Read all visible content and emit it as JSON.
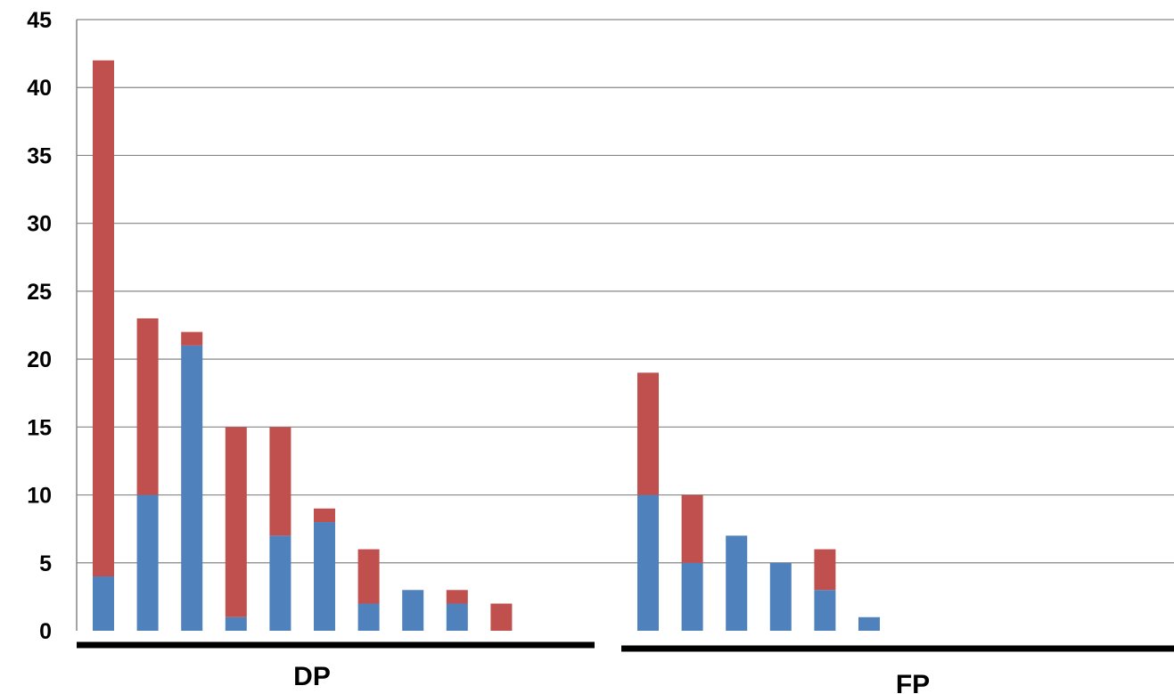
{
  "chart_data": {
    "type": "bar",
    "stacked": true,
    "title": "",
    "xlabel": "",
    "ylabel": "",
    "ylim": [
      0,
      45
    ],
    "yticks": [
      "0",
      "5",
      "10",
      "15",
      "20",
      "25",
      "30",
      "35",
      "40",
      "45"
    ],
    "grid": true,
    "legend": "none",
    "groups": [
      {
        "label": "DP",
        "bars": [
          {
            "blue": 4,
            "red": 38
          },
          {
            "blue": 10,
            "red": 13
          },
          {
            "blue": 21,
            "red": 1
          },
          {
            "blue": 1,
            "red": 14
          },
          {
            "blue": 7,
            "red": 8
          },
          {
            "blue": 8,
            "red": 1
          },
          {
            "blue": 2,
            "red": 4
          },
          {
            "blue": 3,
            "red": 0
          },
          {
            "blue": 2,
            "red": 1
          },
          {
            "blue": 0,
            "red": 2
          },
          {
            "blue": 0,
            "red": 0
          },
          {
            "blue": 0,
            "red": 0
          }
        ]
      },
      {
        "label": "FP",
        "bars": [
          {
            "blue": 10,
            "red": 9
          },
          {
            "blue": 5,
            "red": 5
          },
          {
            "blue": 7,
            "red": 0
          },
          {
            "blue": 5,
            "red": 0
          },
          {
            "blue": 3,
            "red": 3
          },
          {
            "blue": 1,
            "red": 0
          },
          {
            "blue": 0,
            "red": 0
          },
          {
            "blue": 0,
            "red": 0
          },
          {
            "blue": 0,
            "red": 0
          },
          {
            "blue": 0,
            "red": 0
          },
          {
            "blue": 0,
            "red": 0
          },
          {
            "blue": 0,
            "red": 0
          }
        ]
      }
    ],
    "colors": {
      "blue": "#4F81BD",
      "red": "#C0504D",
      "grid": "#868686",
      "axis": "#000000"
    }
  }
}
